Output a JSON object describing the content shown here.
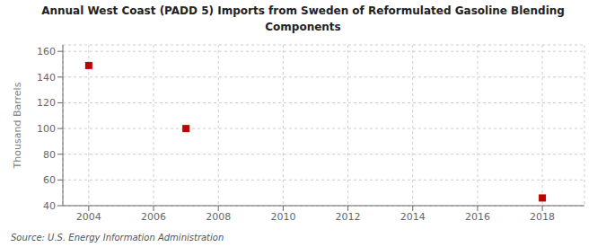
{
  "chart_data": {
    "type": "scatter",
    "title": "Annual West Coast (PADD 5) Imports from Sweden of Reformulated Gasoline Blending\nComponents",
    "ylabel": "Thousand Barrels",
    "annotations": [
      "Source: U.S. Energy Information Administration"
    ],
    "x": [
      2004,
      2007,
      2018
    ],
    "values": [
      149,
      100,
      46
    ],
    "color": "#c00000",
    "marker": "square",
    "xlim": [
      2003.2,
      2019.3
    ],
    "ylim": [
      40,
      165
    ],
    "xticks": [
      2004,
      2006,
      2008,
      2010,
      2012,
      2014,
      2016,
      2018
    ],
    "yticks": [
      40,
      60,
      80,
      100,
      120,
      140,
      160
    ],
    "grid": true
  }
}
